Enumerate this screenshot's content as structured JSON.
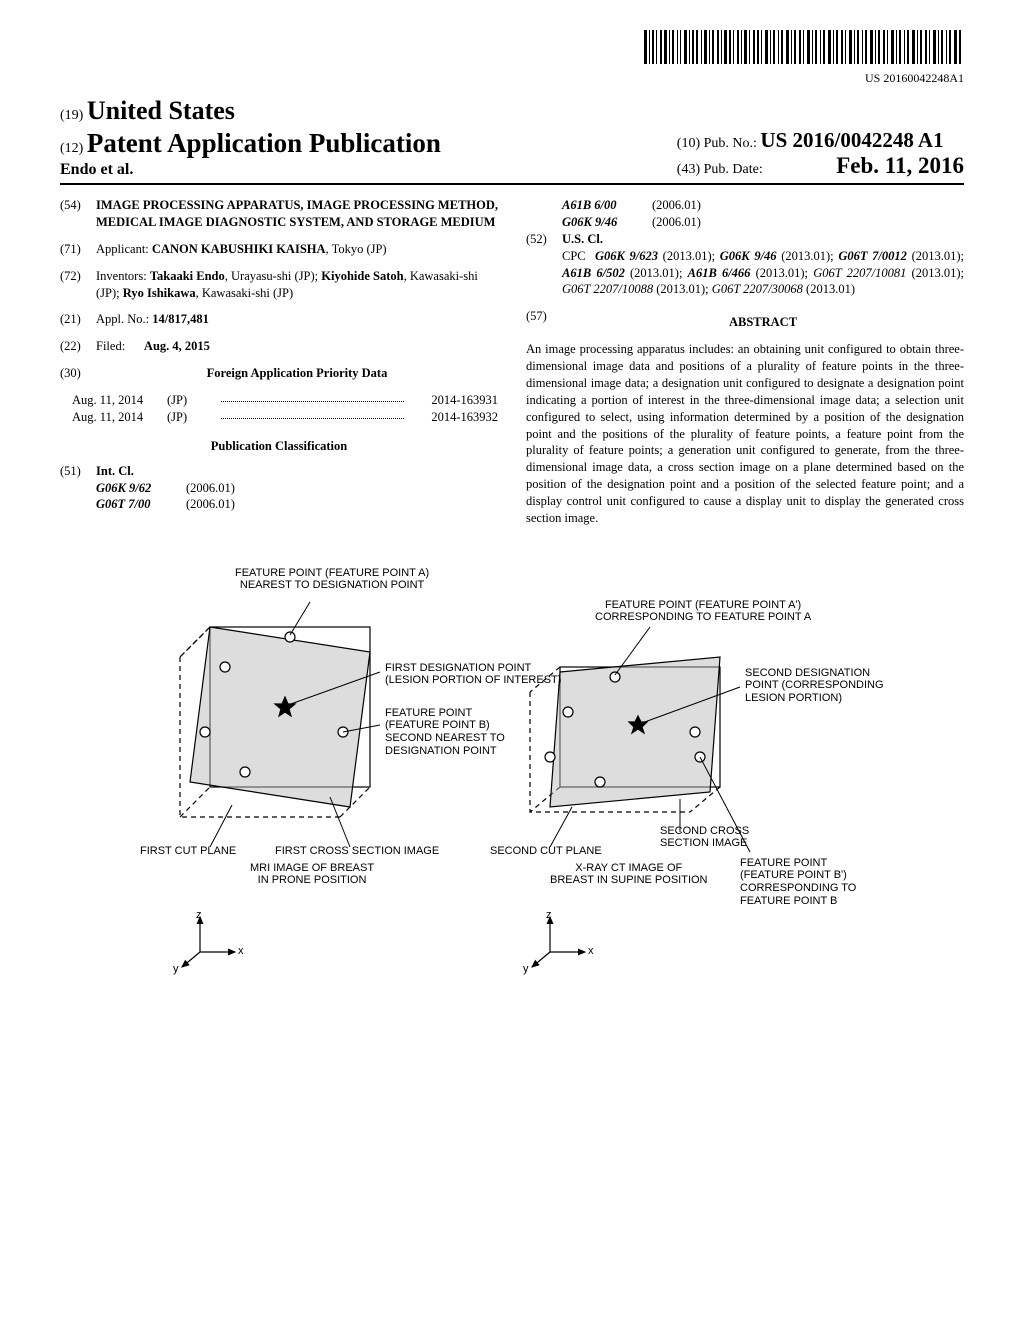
{
  "barcode_pubnum": "US 20160042248A1",
  "header": {
    "code19": "(19)",
    "country": "United States",
    "code12": "(12)",
    "pubtype": "Patent Application Publication",
    "authors": "Endo et al.",
    "code10": "(10)",
    "pubno_label": "Pub. No.:",
    "pubno": "US 2016/0042248 A1",
    "code43": "(43)",
    "date_label": "Pub. Date:",
    "pubdate": "Feb. 11, 2016"
  },
  "field54": {
    "num": "(54)",
    "title": "IMAGE PROCESSING APPARATUS, IMAGE PROCESSING METHOD, MEDICAL IMAGE DIAGNOSTIC SYSTEM, AND STORAGE MEDIUM"
  },
  "field71": {
    "num": "(71)",
    "label": "Applicant:",
    "name": "CANON KABUSHIKI KAISHA",
    "addr": "Tokyo (JP)"
  },
  "field72": {
    "num": "(72)",
    "label": "Inventors:",
    "inv1": "Takaaki Endo",
    "inv1addr": ", Urayasu-shi (JP); ",
    "inv2": "Kiyohide Satoh",
    "inv2addr": ", Kawasaki-shi (JP); ",
    "inv3": "Ryo Ishikawa",
    "inv3addr": ", Kawasaki-shi (JP)"
  },
  "field21": {
    "num": "(21)",
    "label": "Appl. No.:",
    "value": "14/817,481"
  },
  "field22": {
    "num": "(22)",
    "label": "Filed:",
    "value": "Aug. 4, 2015"
  },
  "field30": {
    "num": "(30)",
    "heading": "Foreign Application Priority Data"
  },
  "priority": [
    {
      "date": "Aug. 11, 2014",
      "cc": "(JP)",
      "appno": "2014-163931"
    },
    {
      "date": "Aug. 11, 2014",
      "cc": "(JP)",
      "appno": "2014-163932"
    }
  ],
  "pubclass_heading": "Publication Classification",
  "field51": {
    "num": "(51)",
    "label": "Int. Cl.",
    "rows": [
      {
        "code": "G06K 9/62",
        "ver": "(2006.01)"
      },
      {
        "code": "G06T 7/00",
        "ver": "(2006.01)"
      },
      {
        "code": "A61B 6/00",
        "ver": "(2006.01)"
      },
      {
        "code": "G06K 9/46",
        "ver": "(2006.01)"
      }
    ]
  },
  "field52": {
    "num": "(52)",
    "label": "U.S. Cl.",
    "cpc_label": "CPC",
    "cpc": "G06K 9/623 (2013.01); G06K 9/46 (2013.01); G06T 7/0012 (2013.01); A61B 6/502 (2013.01); A61B 6/466 (2013.01); G06T 2207/10081 (2013.01); G06T 2207/10088 (2013.01); G06T 2207/30068 (2013.01)"
  },
  "field57": {
    "num": "(57)",
    "heading": "ABSTRACT",
    "text": "An image processing apparatus includes: an obtaining unit configured to obtain three-dimensional image data and positions of a plurality of feature points in the three-dimensional image data; a designation unit configured to designate a designation point indicating a portion of interest in the three-dimensional image data; a selection unit configured to select, using information determined by a position of the designation point and the positions of the plurality of feature points, a feature point from the plurality of feature points; a generation unit configured to generate, from the three-dimensional image data, a cross section image on a plane determined based on the position of the designation point and a position of the selected feature point; and a display control unit configured to cause a display unit to display the generated cross section image."
  },
  "figure": {
    "top_label_left": "FEATURE POINT (FEATURE POINT A)\nNEAREST TO DESIGNATION POINT",
    "first_designation": "FIRST DESIGNATION POINT\n(LESION PORTION OF INTEREST)",
    "feature_b": "FEATURE POINT\n(FEATURE POINT B)\nSECOND NEAREST TO\nDESIGNATION POINT",
    "first_cut_plane": "FIRST CUT PLANE",
    "first_cross_section": "FIRST CROSS SECTION IMAGE",
    "mri_caption": "MRI IMAGE OF BREAST\nIN PRONE POSITION",
    "top_label_right": "FEATURE POINT (FEATURE POINT A')\nCORRESPONDING TO FEATURE POINT A",
    "second_designation": "SECOND DESIGNATION\nPOINT (CORRESPONDING\nLESION PORTION)",
    "second_cut_plane": "SECOND CUT PLANE",
    "second_cross_section": "SECOND CROSS\nSECTION IMAGE",
    "ct_caption": "X-RAY CT IMAGE OF\nBREAST IN SUPINE POSITION",
    "feature_b_prime": "FEATURE POINT\n(FEATURE POINT B')\nCORRESPONDING TO\nFEATURE POINT B",
    "axis_x": "x",
    "axis_y": "y",
    "axis_z": "z"
  }
}
